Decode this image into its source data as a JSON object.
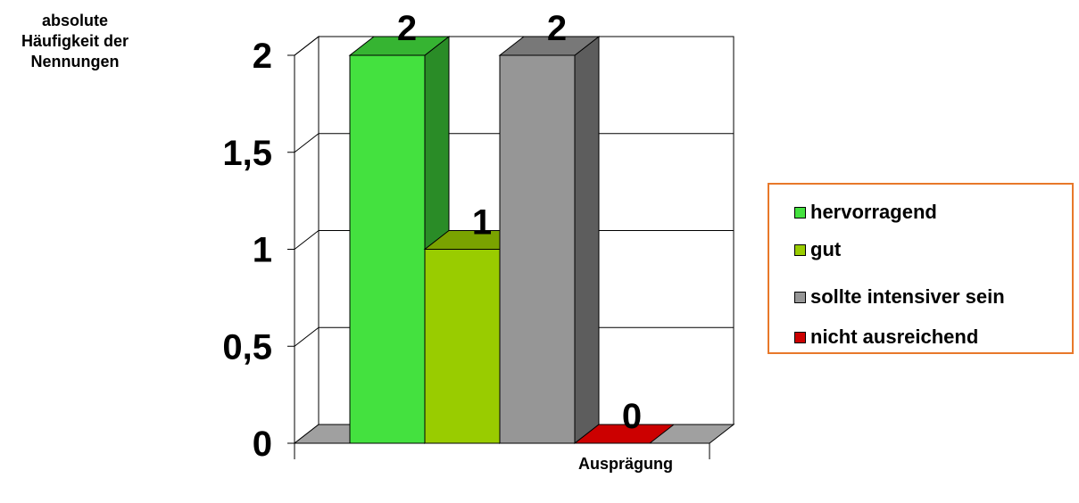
{
  "chart_data": {
    "type": "bar",
    "ylabel": "absolute Häufigkeit der Nennungen",
    "xlabel": "Ausprägung",
    "ylim": [
      0,
      2
    ],
    "yticks": [
      "0",
      "0,5",
      "1",
      "1,5",
      "2"
    ],
    "grid": true,
    "three_d": true,
    "legend_position": "right",
    "series": [
      {
        "name": "hervorragend",
        "value": 2,
        "label": "2",
        "color": "#44e13f"
      },
      {
        "name": "gut",
        "value": 1,
        "label": "1",
        "color": "#99cc00"
      },
      {
        "name": "sollte intensiver sein",
        "value": 2,
        "label": "2",
        "color": "#969696"
      },
      {
        "name": "nicht ausreichend",
        "value": 0,
        "label": "0",
        "color": "#cc0000"
      }
    ]
  }
}
